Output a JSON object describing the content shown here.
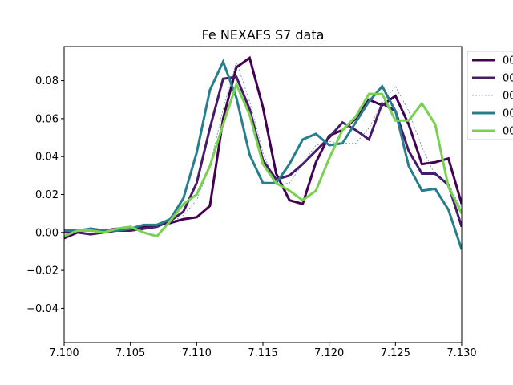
{
  "chart_data": {
    "type": "line",
    "title": "Fe NEXAFS S7 data",
    "xlabel": "",
    "ylabel": "",
    "xlim": [
      7.1,
      7.13
    ],
    "ylim": [
      -0.058,
      0.098
    ],
    "x_ticks": [
      "7.100",
      "7.105",
      "7.110",
      "7.115",
      "7.120",
      "7.125",
      "7.130"
    ],
    "x_tick_values": [
      7.1,
      7.105,
      7.11,
      7.115,
      7.12,
      7.125,
      7.13
    ],
    "y_ticks": [
      "−0.04",
      "−0.02",
      "0.00",
      "0.02",
      "0.04",
      "0.06",
      "0.08"
    ],
    "y_tick_values": [
      -0.04,
      -0.02,
      0.0,
      0.02,
      0.04,
      0.06,
      0.08
    ],
    "grid": false,
    "legend_position": "outside-top-right",
    "series": [
      {
        "name": "00",
        "color": "#440154",
        "style": "solid-thick",
        "x": [
          7.099,
          7.1,
          7.101,
          7.102,
          7.103,
          7.104,
          7.105,
          7.106,
          7.107,
          7.108,
          7.109,
          7.11,
          7.111,
          7.112,
          7.113,
          7.114,
          7.115,
          7.116,
          7.117,
          7.118,
          7.119,
          7.12,
          7.121,
          7.122,
          7.123,
          7.124,
          7.125,
          7.126,
          7.127,
          7.128,
          7.129,
          7.13
        ],
        "y": [
          -0.005,
          -0.003,
          0.0,
          0.002,
          0.001,
          0.002,
          0.002,
          0.003,
          0.004,
          0.005,
          0.007,
          0.008,
          0.014,
          0.06,
          0.087,
          0.092,
          0.066,
          0.031,
          0.017,
          0.015,
          0.037,
          0.051,
          0.054,
          0.06,
          0.07,
          0.067,
          0.072,
          0.057,
          0.036,
          0.037,
          0.039,
          0.015
        ]
      },
      {
        "name": "00",
        "color": "#481a6c",
        "style": "solid-thick",
        "x": [
          7.099,
          7.1,
          7.101,
          7.102,
          7.103,
          7.104,
          7.105,
          7.106,
          7.107,
          7.108,
          7.109,
          7.11,
          7.111,
          7.112,
          7.113,
          7.114,
          7.115,
          7.116,
          7.117,
          7.118,
          7.119,
          7.12,
          7.121,
          7.122,
          7.123,
          7.124,
          7.125,
          7.126,
          7.127,
          7.128,
          7.129,
          7.13
        ],
        "y": [
          -0.001,
          0.0,
          0.0,
          -0.001,
          0.0,
          0.001,
          0.001,
          0.002,
          0.003,
          0.006,
          0.011,
          0.026,
          0.055,
          0.081,
          0.082,
          0.065,
          0.038,
          0.028,
          0.03,
          0.036,
          0.043,
          0.05,
          0.058,
          0.054,
          0.049,
          0.068,
          0.064,
          0.043,
          0.031,
          0.031,
          0.025,
          0.003
        ]
      },
      {
        "name": "00",
        "color": "#2f6b8e",
        "style": "dashed-thin",
        "x": [
          7.099,
          7.1,
          7.101,
          7.102,
          7.103,
          7.104,
          7.105,
          7.106,
          7.107,
          7.108,
          7.109,
          7.11,
          7.111,
          7.112,
          7.113,
          7.114,
          7.115,
          7.116,
          7.117,
          7.118,
          7.119,
          7.12,
          7.121,
          7.122,
          7.123,
          7.124,
          7.125,
          7.126,
          7.127,
          7.128,
          7.129,
          7.13
        ],
        "y": [
          0.0,
          0.001,
          0.001,
          0.001,
          0.001,
          0.001,
          0.002,
          0.002,
          0.003,
          0.005,
          0.009,
          0.017,
          0.035,
          0.065,
          0.09,
          0.069,
          0.042,
          0.025,
          0.026,
          0.036,
          0.046,
          0.048,
          0.047,
          0.047,
          0.055,
          0.068,
          0.077,
          0.064,
          0.045,
          0.03,
          0.026,
          0.012
        ]
      },
      {
        "name": "00",
        "color": "#277f8e",
        "style": "solid-thick",
        "x": [
          7.099,
          7.1,
          7.101,
          7.102,
          7.103,
          7.104,
          7.105,
          7.106,
          7.107,
          7.108,
          7.109,
          7.11,
          7.111,
          7.112,
          7.113,
          7.114,
          7.115,
          7.116,
          7.117,
          7.118,
          7.119,
          7.12,
          7.121,
          7.122,
          7.123,
          7.124,
          7.125,
          7.126,
          7.127,
          7.128,
          7.129,
          7.13
        ],
        "y": [
          0.002,
          0.001,
          0.001,
          0.002,
          0.001,
          0.001,
          0.002,
          0.004,
          0.004,
          0.007,
          0.018,
          0.042,
          0.075,
          0.09,
          0.071,
          0.041,
          0.026,
          0.026,
          0.036,
          0.049,
          0.052,
          0.046,
          0.047,
          0.058,
          0.069,
          0.077,
          0.064,
          0.035,
          0.022,
          0.023,
          0.012,
          -0.009
        ]
      },
      {
        "name": "00",
        "color": "#7ad151",
        "style": "solid-thick",
        "x": [
          7.099,
          7.1,
          7.101,
          7.102,
          7.103,
          7.104,
          7.105,
          7.106,
          7.107,
          7.108,
          7.109,
          7.11,
          7.111,
          7.112,
          7.113,
          7.114,
          7.115,
          7.116,
          7.117,
          7.118,
          7.119,
          7.12,
          7.121,
          7.122,
          7.123,
          7.124,
          7.125,
          7.126,
          7.127,
          7.128,
          7.129,
          7.13
        ],
        "y": [
          -0.003,
          -0.002,
          0.001,
          0.001,
          0.0,
          0.002,
          0.003,
          0.0,
          -0.002,
          0.006,
          0.015,
          0.02,
          0.035,
          0.057,
          0.078,
          0.062,
          0.036,
          0.026,
          0.022,
          0.017,
          0.022,
          0.039,
          0.054,
          0.061,
          0.073,
          0.073,
          0.059,
          0.059,
          0.068,
          0.057,
          0.024,
          0.01
        ]
      }
    ]
  }
}
